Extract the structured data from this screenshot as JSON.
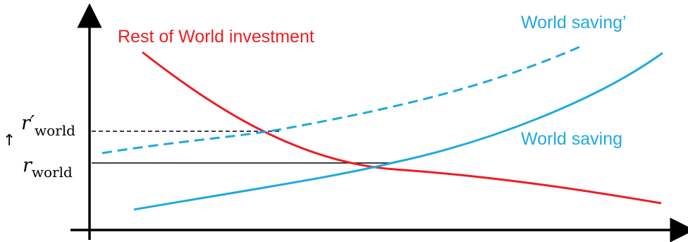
{
  "labels": {
    "investment": "Rest of World investment",
    "saving_new": "World saving’",
    "saving": "World saving"
  },
  "rates": {
    "r_new_main": "r′",
    "r_new_sub": "world",
    "r_main": "r",
    "r_sub": "world",
    "arrow": "↑"
  },
  "colors": {
    "investment": "#ee1c25",
    "saving": "#1fa9e1",
    "axis": "#000000"
  }
}
